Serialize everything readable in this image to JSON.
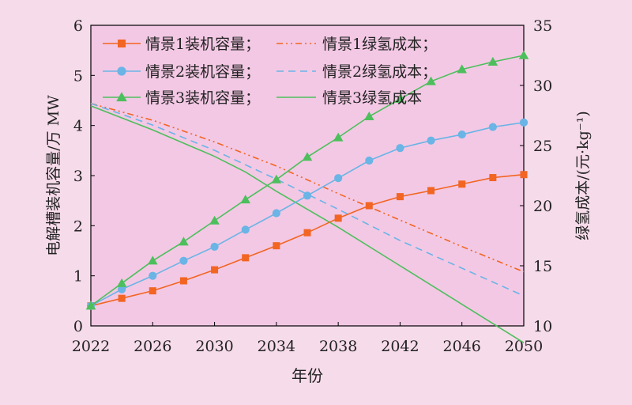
{
  "chart_data": {
    "type": "line",
    "background": "#f6dbea",
    "plot_background": "#f3c8e4",
    "xlabel": "年份",
    "ylabel_left": "电解槽装机容量/万 MW",
    "ylabel_right": "绿氢成本/(元·kg⁻¹)",
    "x_ticks": [
      2022,
      2026,
      2030,
      2034,
      2038,
      2042,
      2046,
      2050
    ],
    "xlim": [
      2022,
      2050
    ],
    "ylim_left": [
      0,
      6
    ],
    "y_ticks_left": [
      0,
      1,
      2,
      3,
      4,
      5,
      6
    ],
    "ylim_right": [
      10,
      35
    ],
    "y_ticks_right": [
      10,
      15,
      20,
      25,
      30,
      35
    ],
    "grid": false,
    "legend_position": "top-left",
    "capacity_series": [
      {
        "name": "情景1装机容量；",
        "color": "#f26522",
        "marker": "square",
        "axis": "left",
        "x": [
          2022,
          2024,
          2026,
          2028,
          2030,
          2032,
          2034,
          2036,
          2038,
          2040,
          2042,
          2044,
          2046,
          2048,
          2050
        ],
        "values": [
          0.4,
          0.55,
          0.7,
          0.9,
          1.12,
          1.36,
          1.6,
          1.86,
          2.15,
          2.4,
          2.58,
          2.7,
          2.83,
          2.96,
          3.02
        ]
      },
      {
        "name": "情景2装机容量；",
        "color": "#6ab4e6",
        "marker": "circle",
        "axis": "left",
        "x": [
          2022,
          2024,
          2026,
          2028,
          2030,
          2032,
          2034,
          2036,
          2038,
          2040,
          2042,
          2044,
          2046,
          2048,
          2050
        ],
        "values": [
          0.4,
          0.73,
          1.0,
          1.3,
          1.58,
          1.92,
          2.25,
          2.6,
          2.95,
          3.3,
          3.55,
          3.7,
          3.82,
          3.97,
          4.06
        ]
      },
      {
        "name": "情景3装机容量；",
        "color": "#4cbf5c",
        "marker": "triangle",
        "axis": "left",
        "x": [
          2022,
          2024,
          2026,
          2028,
          2030,
          2032,
          2034,
          2036,
          2038,
          2040,
          2042,
          2044,
          2046,
          2048,
          2050
        ],
        "values": [
          0.4,
          0.85,
          1.3,
          1.68,
          2.1,
          2.52,
          2.92,
          3.37,
          3.76,
          4.18,
          4.53,
          4.88,
          5.12,
          5.27,
          5.4
        ]
      }
    ],
    "cost_series": [
      {
        "name": "情景1绿氢成本；",
        "color": "#f26522",
        "dash": "dashdotdot",
        "axis": "right",
        "x": [
          2022,
          2026,
          2030,
          2034,
          2038,
          2042,
          2046,
          2050
        ],
        "values": [
          28.5,
          27.1,
          25.3,
          23.3,
          21.0,
          18.8,
          16.6,
          14.5
        ]
      },
      {
        "name": "情景2绿氢成本；",
        "color": "#6ab4e6",
        "dash": "dash",
        "axis": "right",
        "x": [
          2022,
          2026,
          2030,
          2034,
          2038,
          2042,
          2046,
          2050
        ],
        "values": [
          28.5,
          26.7,
          24.6,
          22.2,
          19.7,
          17.1,
          14.8,
          12.5
        ]
      },
      {
        "name": "情景3绿氢成本",
        "color": "#4cbf5c",
        "dash": "solid",
        "axis": "right",
        "x": [
          2022,
          2026,
          2030,
          2032,
          2034,
          2038,
          2042,
          2046,
          2050
        ],
        "values": [
          28.3,
          26.3,
          24.1,
          22.8,
          21.2,
          18.2,
          15.0,
          11.8,
          8.6
        ]
      }
    ]
  }
}
